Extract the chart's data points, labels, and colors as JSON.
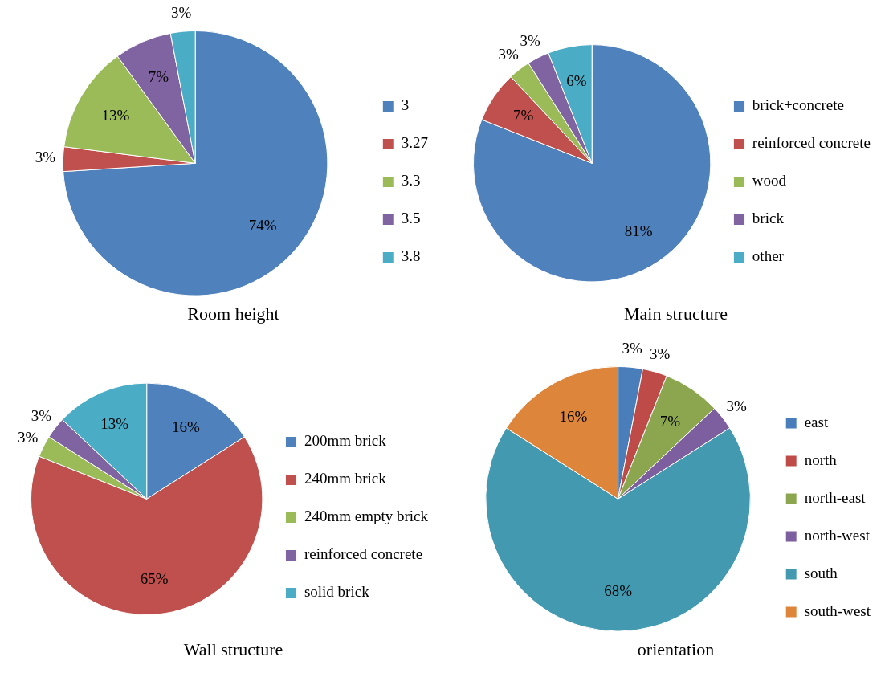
{
  "chart_data": [
    {
      "type": "pie",
      "title": "Room height",
      "categories": [
        "3",
        "3.27",
        "3.3",
        "3.5",
        "3.8"
      ],
      "values": [
        74,
        3,
        13,
        7,
        3
      ],
      "value_labels": [
        "74%",
        "3%",
        "13%",
        "7%",
        "3%"
      ],
      "colors": [
        "#4f81bd",
        "#c0504d",
        "#9bbb59",
        "#8064a2",
        "#4bacc6"
      ],
      "legend": "right"
    },
    {
      "type": "pie",
      "title": "Main structure",
      "categories": [
        "brick+concrete",
        "reinforced concrete",
        "wood",
        "brick",
        "other"
      ],
      "values": [
        81,
        7,
        3,
        3,
        6
      ],
      "value_labels": [
        "81%",
        "7%",
        "3%",
        "3%",
        "6%"
      ],
      "colors": [
        "#4f81bd",
        "#c0504d",
        "#9bbb59",
        "#8064a2",
        "#4bacc6"
      ],
      "legend": "right"
    },
    {
      "type": "pie",
      "title": "Wall structure",
      "categories": [
        "200mm brick",
        "240mm brick",
        "240mm empty brick",
        "reinforced concrete",
        "solid brick"
      ],
      "values": [
        16,
        65,
        3,
        3,
        13
      ],
      "value_labels": [
        "16%",
        "65%",
        "3%",
        "3%",
        "13%"
      ],
      "colors": [
        "#4f81bd",
        "#c0504d",
        "#9bbb59",
        "#8064a2",
        "#4bacc6"
      ],
      "legend": "right"
    },
    {
      "type": "pie",
      "title": "orientation",
      "categories": [
        "east",
        "north",
        "north-east",
        "north-west",
        "south",
        "south-west"
      ],
      "values": [
        3,
        3,
        7,
        3,
        68,
        16
      ],
      "value_labels": [
        "3%",
        "3%",
        "7%",
        "3%",
        "68%",
        "16%"
      ],
      "colors": [
        "#4a7ebb",
        "#be4b48",
        "#8ba64f",
        "#7d5fa0",
        "#4299b0",
        "#dc853b"
      ],
      "legend": "right"
    }
  ]
}
